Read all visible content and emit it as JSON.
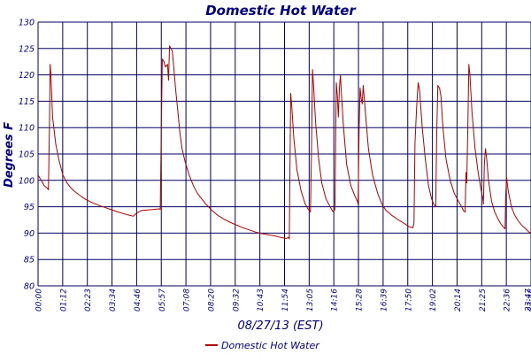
{
  "chart_data": {
    "type": "line",
    "title": "Domestic Hot Water",
    "xlabel": "08/27/13 (EST)",
    "ylabel": "Degrees F",
    "ylim": [
      80,
      130
    ],
    "yticks": [
      80,
      85,
      90,
      95,
      100,
      105,
      110,
      115,
      120,
      125,
      130
    ],
    "xticks": [
      "00:00",
      "01:12",
      "02:23",
      "03:34",
      "04:46",
      "05:57",
      "07:08",
      "08:20",
      "09:32",
      "10:43",
      "11:54",
      "13:05",
      "14:16",
      "15:28",
      "16:39",
      "17:50",
      "19:02",
      "20:14",
      "21:25",
      "22:36",
      "23:47",
      "23:48"
    ],
    "xrange_hours": [
      0,
      23.8
    ],
    "grid": true,
    "legend_position": "bottom",
    "colors": {
      "series": "#b00000",
      "axis_text": "#000080",
      "grid": "#000060",
      "title": "#000080"
    },
    "series": [
      {
        "name": "Domestic Hot Water",
        "points": [
          [
            0.0,
            101.0
          ],
          [
            0.15,
            100.0
          ],
          [
            0.3,
            99.0
          ],
          [
            0.45,
            98.5
          ],
          [
            0.5,
            98.2
          ],
          [
            0.55,
            110.0
          ],
          [
            0.58,
            122.0
          ],
          [
            0.62,
            120.0
          ],
          [
            0.7,
            112.0
          ],
          [
            0.85,
            107.0
          ],
          [
            1.0,
            104.0
          ],
          [
            1.2,
            101.0
          ],
          [
            1.4,
            99.5
          ],
          [
            1.6,
            98.5
          ],
          [
            1.8,
            97.8
          ],
          [
            2.0,
            97.2
          ],
          [
            2.3,
            96.4
          ],
          [
            2.6,
            95.8
          ],
          [
            2.9,
            95.3
          ],
          [
            3.2,
            94.9
          ],
          [
            3.5,
            94.5
          ],
          [
            3.8,
            94.1
          ],
          [
            4.1,
            93.7
          ],
          [
            4.4,
            93.4
          ],
          [
            4.6,
            93.2
          ],
          [
            4.7,
            93.6
          ],
          [
            4.85,
            94.0
          ],
          [
            5.0,
            94.3
          ],
          [
            5.3,
            94.4
          ],
          [
            5.6,
            94.5
          ],
          [
            5.85,
            94.6
          ],
          [
            5.9,
            94.5
          ],
          [
            5.95,
            110.0
          ],
          [
            6.0,
            123.0
          ],
          [
            6.08,
            122.5
          ],
          [
            6.15,
            121.5
          ],
          [
            6.25,
            122.0
          ],
          [
            6.3,
            119.0
          ],
          [
            6.35,
            125.5
          ],
          [
            6.42,
            125.0
          ],
          [
            6.48,
            124.5
          ],
          [
            6.55,
            121.5
          ],
          [
            6.65,
            117.0
          ],
          [
            6.75,
            113.0
          ],
          [
            6.85,
            109.0
          ],
          [
            6.95,
            106.0
          ],
          [
            7.1,
            103.5
          ],
          [
            7.3,
            101.0
          ],
          [
            7.5,
            99.0
          ],
          [
            7.7,
            97.5
          ],
          [
            7.9,
            96.5
          ],
          [
            8.1,
            95.5
          ],
          [
            8.4,
            94.3
          ],
          [
            8.7,
            93.3
          ],
          [
            9.0,
            92.6
          ],
          [
            9.3,
            92.0
          ],
          [
            9.6,
            91.5
          ],
          [
            9.9,
            91.0
          ],
          [
            10.2,
            90.6
          ],
          [
            10.5,
            90.2
          ],
          [
            10.8,
            89.9
          ],
          [
            11.1,
            89.7
          ],
          [
            11.4,
            89.5
          ],
          [
            11.7,
            89.2
          ],
          [
            12.0,
            89.0
          ],
          [
            12.1,
            89.2
          ],
          [
            12.13,
            88.9
          ],
          [
            12.17,
            105.0
          ],
          [
            12.2,
            116.5
          ],
          [
            12.25,
            114.0
          ],
          [
            12.35,
            108.0
          ],
          [
            12.5,
            102.0
          ],
          [
            12.7,
            98.0
          ],
          [
            12.9,
            95.5
          ],
          [
            13.05,
            94.5
          ],
          [
            13.15,
            94.0
          ],
          [
            13.2,
            105.0
          ],
          [
            13.25,
            121.0
          ],
          [
            13.3,
            118.0
          ],
          [
            13.4,
            111.0
          ],
          [
            13.55,
            104.0
          ],
          [
            13.7,
            99.5
          ],
          [
            13.9,
            96.5
          ],
          [
            14.1,
            95.0
          ],
          [
            14.25,
            94.0
          ],
          [
            14.33,
            94.5
          ],
          [
            14.37,
            108.0
          ],
          [
            14.4,
            118.5
          ],
          [
            14.45,
            116.0
          ],
          [
            14.5,
            112.0
          ],
          [
            14.55,
            117.5
          ],
          [
            14.6,
            120.0
          ],
          [
            14.65,
            116.0
          ],
          [
            14.75,
            110.0
          ],
          [
            14.9,
            103.0
          ],
          [
            15.1,
            99.0
          ],
          [
            15.3,
            97.0
          ],
          [
            15.42,
            96.0
          ],
          [
            15.45,
            95.5
          ],
          [
            15.5,
            110.0
          ],
          [
            15.55,
            117.5
          ],
          [
            15.6,
            115.5
          ],
          [
            15.65,
            114.5
          ],
          [
            15.7,
            118.0
          ],
          [
            15.8,
            113.0
          ],
          [
            15.95,
            106.0
          ],
          [
            16.15,
            101.0
          ],
          [
            16.4,
            97.5
          ],
          [
            16.6,
            95.5
          ],
          [
            16.8,
            94.3
          ],
          [
            17.1,
            93.3
          ],
          [
            17.4,
            92.5
          ],
          [
            17.7,
            91.8
          ],
          [
            17.9,
            91.2
          ],
          [
            18.1,
            91.0
          ],
          [
            18.15,
            92.0
          ],
          [
            18.2,
            107.0
          ],
          [
            18.25,
            111.5
          ],
          [
            18.28,
            114.0
          ],
          [
            18.35,
            118.5
          ],
          [
            18.42,
            117.0
          ],
          [
            18.55,
            110.0
          ],
          [
            18.7,
            104.0
          ],
          [
            18.85,
            99.0
          ],
          [
            19.0,
            96.5
          ],
          [
            19.1,
            95.5
          ],
          [
            19.2,
            95.0
          ],
          [
            19.25,
            109.0
          ],
          [
            19.3,
            118.0
          ],
          [
            19.38,
            117.5
          ],
          [
            19.45,
            116.0
          ],
          [
            19.55,
            110.0
          ],
          [
            19.7,
            104.0
          ],
          [
            19.9,
            100.0
          ],
          [
            20.1,
            97.5
          ],
          [
            20.3,
            96.0
          ],
          [
            20.45,
            95.0
          ],
          [
            20.55,
            94.2
          ],
          [
            20.62,
            94.0
          ],
          [
            20.66,
            101.5
          ],
          [
            20.7,
            99.5
          ],
          [
            20.75,
            110.0
          ],
          [
            20.8,
            122.0
          ],
          [
            20.85,
            120.0
          ],
          [
            20.95,
            113.0
          ],
          [
            21.1,
            106.0
          ],
          [
            21.25,
            101.5
          ],
          [
            21.4,
            98.0
          ],
          [
            21.48,
            96.5
          ],
          [
            21.5,
            95.5
          ],
          [
            21.55,
            103.0
          ],
          [
            21.6,
            106.0
          ],
          [
            21.65,
            104.5
          ],
          [
            21.75,
            100.0
          ],
          [
            21.9,
            96.0
          ],
          [
            22.05,
            94.0
          ],
          [
            22.2,
            92.7
          ],
          [
            22.35,
            91.7
          ],
          [
            22.5,
            91.0
          ],
          [
            22.55,
            90.8
          ],
          [
            22.58,
            97.0
          ],
          [
            22.62,
            100.5
          ],
          [
            22.7,
            98.0
          ],
          [
            22.85,
            95.0
          ],
          [
            23.0,
            93.5
          ],
          [
            23.15,
            92.5
          ],
          [
            23.35,
            91.5
          ],
          [
            23.55,
            90.8
          ],
          [
            23.7,
            90.2
          ],
          [
            23.8,
            90.0
          ]
        ]
      }
    ]
  }
}
